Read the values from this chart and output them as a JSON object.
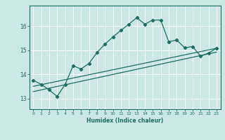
{
  "title": "",
  "xlabel": "Humidex (Indice chaleur)",
  "bg_color": "#cce8e4",
  "line_color": "#1a6e64",
  "grid_color": "#ffffff",
  "xlim": [
    -0.5,
    23.5
  ],
  "ylim": [
    12.55,
    16.85
  ],
  "yticks": [
    13,
    14,
    15,
    16
  ],
  "xticks": [
    0,
    1,
    2,
    3,
    4,
    5,
    6,
    7,
    8,
    9,
    10,
    11,
    12,
    13,
    14,
    15,
    16,
    17,
    18,
    19,
    20,
    21,
    22,
    23
  ],
  "main_x": [
    0,
    1,
    2,
    3,
    4,
    5,
    6,
    7,
    8,
    9,
    10,
    11,
    12,
    13,
    14,
    15,
    16,
    17,
    18,
    19,
    20,
    21,
    22,
    23
  ],
  "main_y": [
    13.75,
    13.58,
    13.35,
    13.08,
    13.58,
    14.35,
    14.22,
    14.45,
    14.9,
    15.25,
    15.55,
    15.82,
    16.08,
    16.35,
    16.08,
    16.25,
    16.25,
    15.35,
    15.42,
    15.1,
    15.15,
    14.75,
    14.88,
    15.08
  ],
  "line1_x": [
    0,
    23
  ],
  "line1_y": [
    13.5,
    15.08
  ],
  "line2_x": [
    0,
    23
  ],
  "line2_y": [
    13.28,
    14.92
  ]
}
